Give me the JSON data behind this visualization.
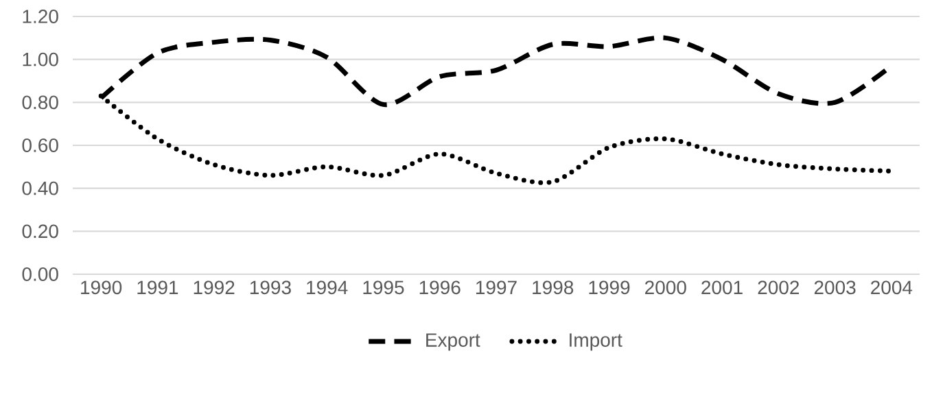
{
  "chart_data": {
    "type": "line",
    "categories": [
      "1990",
      "1991",
      "1992",
      "1993",
      "1994",
      "1995",
      "1996",
      "1997",
      "1998",
      "1999",
      "2000",
      "2001",
      "2002",
      "2003",
      "2004"
    ],
    "series": [
      {
        "name": "Export",
        "color": "#000000",
        "line_style": "dashed",
        "values": [
          0.82,
          1.03,
          1.08,
          1.09,
          1.01,
          0.79,
          0.92,
          0.95,
          1.07,
          1.06,
          1.1,
          1.0,
          0.84,
          0.8,
          0.97
        ]
      },
      {
        "name": "Import",
        "color": "#000000",
        "line_style": "dotted",
        "values": [
          0.83,
          0.63,
          0.51,
          0.46,
          0.5,
          0.46,
          0.56,
          0.47,
          0.43,
          0.59,
          0.63,
          0.56,
          0.51,
          0.49,
          0.48
        ]
      }
    ],
    "ylim": [
      0,
      1.2
    ],
    "yticks": [
      {
        "value": 0,
        "label": "0.00"
      },
      {
        "value": 0.2,
        "label": "0.20"
      },
      {
        "value": 0.4,
        "label": "0.40"
      },
      {
        "value": 0.6,
        "label": "0.60"
      },
      {
        "value": 0.8,
        "label": "0.80"
      },
      {
        "value": 1.0,
        "label": "1.00"
      },
      {
        "value": 1.2,
        "label": "1.20"
      }
    ],
    "grid": "y",
    "legend": "bottom",
    "marker": "none"
  }
}
